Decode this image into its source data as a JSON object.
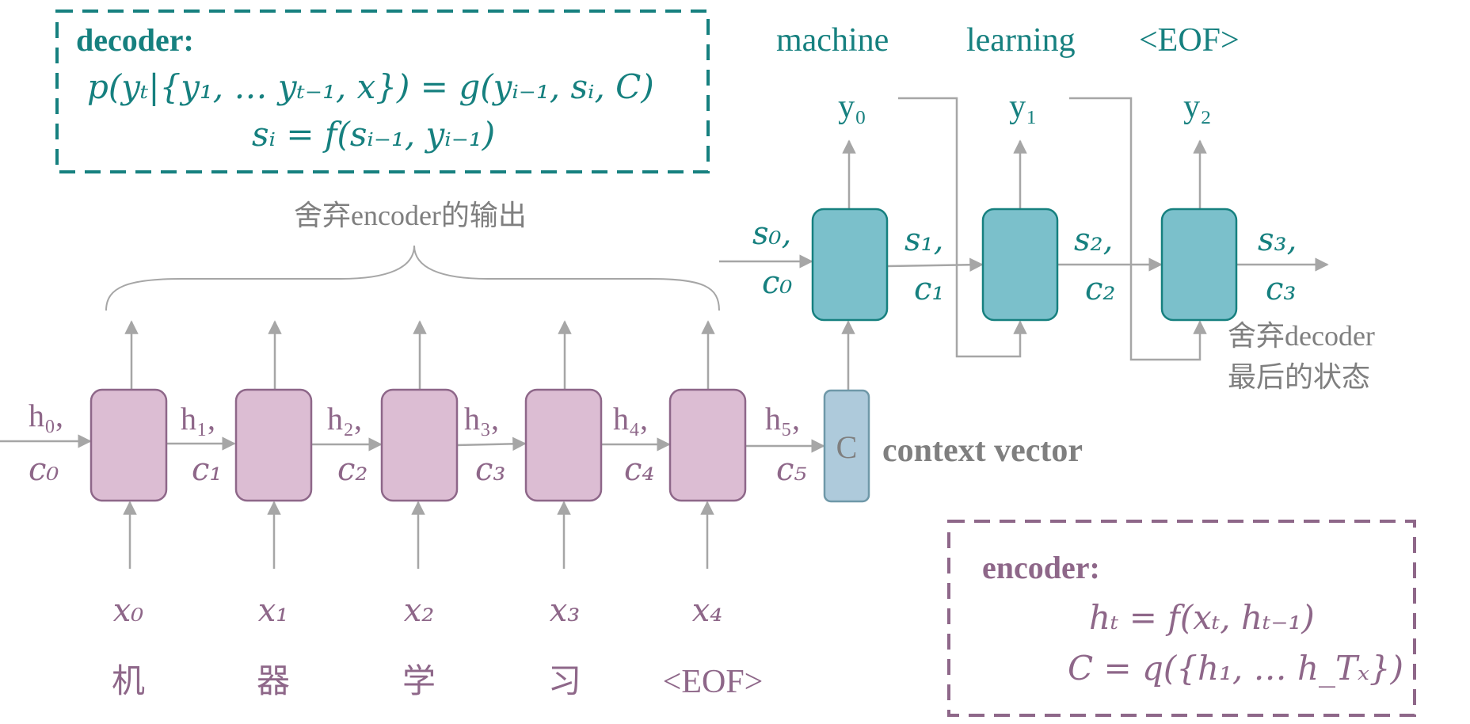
{
  "colors": {
    "teal": "#16807f",
    "teal_fill": "#7bc0cb",
    "purple": "#8e6789",
    "purple_fill": "#dcbdd3",
    "context_fill": "#aecadb",
    "context_stroke": "#6f98a8",
    "gray": "#a6a6a6",
    "label_gray": "#7f7f7f"
  },
  "decoder_box": {
    "title": "decoder:",
    "eq1": "p(yₜ|{y₁, … yₜ₋₁, x}) = g(yᵢ₋₁, sᵢ, C)",
    "eq2": "sᵢ = f(sᵢ₋₁, yᵢ₋₁)"
  },
  "encoder_box": {
    "title": "encoder:",
    "eq1": "hₜ = f(xₜ, hₜ₋₁)",
    "eq2": "C = q({h₁, … h_Tₓ})"
  },
  "annotations": {
    "discard_encoder_output": "舍弃encoder的输出",
    "discard_decoder_line1": "舍弃decoder",
    "discard_decoder_line2": "最后的状态",
    "context_vector": "context vector",
    "context_cell": "C"
  },
  "decoder": {
    "words": [
      "machine",
      "learning",
      "<EOF>"
    ],
    "outputs": [
      "y₀",
      "y₁",
      "y₂"
    ],
    "states": [
      {
        "s": "s₀,",
        "c": "c₀"
      },
      {
        "s": "s₁,",
        "c": "c₁"
      },
      {
        "s": "s₂,",
        "c": "c₂"
      },
      {
        "s": "s₃,",
        "c": "c₃"
      }
    ]
  },
  "encoder": {
    "inputs": [
      "x₀",
      "x₁",
      "x₂",
      "x₃",
      "x₄"
    ],
    "tokens": [
      "机",
      "器",
      "学",
      "习",
      "<EOF>"
    ],
    "states": [
      {
        "h": "h₀,",
        "c": "c₀"
      },
      {
        "h": "h₁,",
        "c": "c₁"
      },
      {
        "h": "h₂,",
        "c": "c₂"
      },
      {
        "h": "h₃,",
        "c": "c₃"
      },
      {
        "h": "h₄,",
        "c": "c₄"
      },
      {
        "h": "h₅,",
        "c": "c₅"
      }
    ]
  }
}
